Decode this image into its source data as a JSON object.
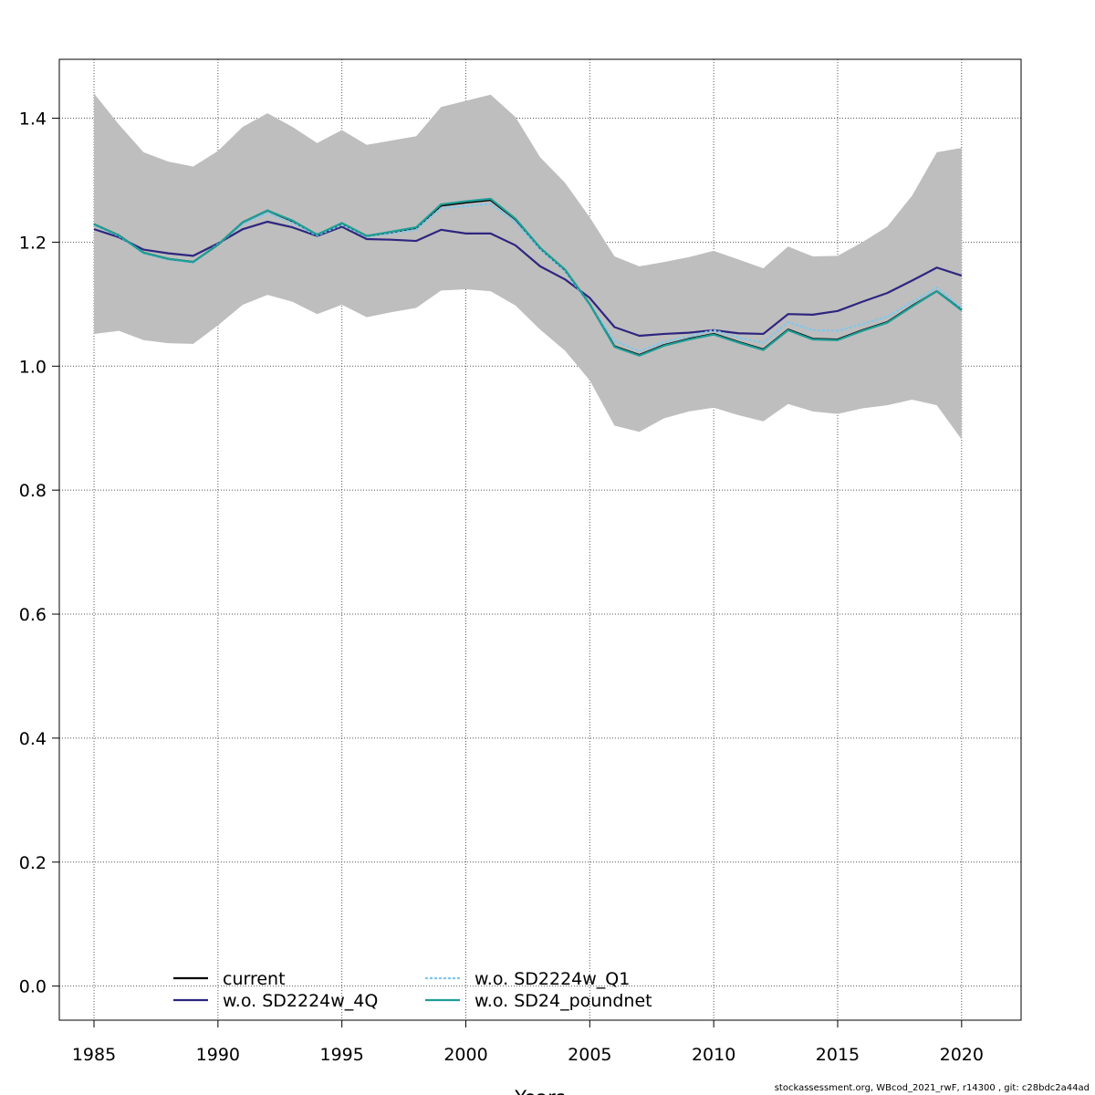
{
  "chart_data": {
    "type": "line",
    "xlabel": "Years",
    "ylabel": "",
    "xlim": [
      1983.6,
      2022.4
    ],
    "ylim": [
      -0.055,
      1.495
    ],
    "xticks": [
      1985,
      1990,
      1995,
      2000,
      2005,
      2010,
      2015,
      2020
    ],
    "yticks": [
      0.0,
      0.2,
      0.4,
      0.6,
      0.8,
      1.0,
      1.2,
      1.4
    ],
    "grid": true,
    "legend_position": "bottom-left",
    "x": [
      1985,
      1986,
      1987,
      1988,
      1989,
      1990,
      1991,
      1992,
      1993,
      1994,
      1995,
      1996,
      1997,
      1998,
      1999,
      2000,
      2001,
      2002,
      2003,
      2004,
      2005,
      2006,
      2007,
      2008,
      2009,
      2010,
      2011,
      2012,
      2013,
      2014,
      2015,
      2016,
      2017,
      2018,
      2019,
      2020
    ],
    "band": {
      "color": "#bebebe",
      "upper": [
        1.44,
        1.39,
        1.345,
        1.33,
        1.322,
        1.347,
        1.386,
        1.408,
        1.386,
        1.36,
        1.381,
        1.357,
        1.364,
        1.371,
        1.418,
        1.428,
        1.438,
        1.402,
        1.337,
        1.296,
        1.24,
        1.177,
        1.161,
        1.168,
        1.176,
        1.186,
        1.172,
        1.158,
        1.193,
        1.177,
        1.178,
        1.2,
        1.225,
        1.275,
        1.345,
        1.352
      ],
      "lower": [
        1.052,
        1.057,
        1.042,
        1.037,
        1.036,
        1.066,
        1.099,
        1.115,
        1.104,
        1.084,
        1.099,
        1.079,
        1.087,
        1.094,
        1.122,
        1.124,
        1.121,
        1.098,
        1.059,
        1.025,
        0.977,
        0.904,
        0.894,
        0.916,
        0.927,
        0.933,
        0.921,
        0.911,
        0.939,
        0.927,
        0.923,
        0.932,
        0.937,
        0.946,
        0.937,
        0.882
      ]
    },
    "series": [
      {
        "name": "current",
        "color": "#000000",
        "dash": "",
        "values": [
          1.229,
          1.211,
          1.183,
          1.173,
          1.168,
          1.196,
          1.232,
          1.251,
          1.234,
          1.212,
          1.23,
          1.21,
          1.216,
          1.223,
          1.259,
          1.264,
          1.268,
          1.237,
          1.19,
          1.155,
          1.1,
          1.032,
          1.018,
          1.034,
          1.044,
          1.052,
          1.039,
          1.027,
          1.059,
          1.044,
          1.043,
          1.058,
          1.071,
          1.097,
          1.121,
          1.091
        ]
      },
      {
        "name": "w.o. SD2224w_4Q",
        "color": "#2e2580",
        "dash": "",
        "values": [
          1.221,
          1.208,
          1.188,
          1.182,
          1.178,
          1.198,
          1.221,
          1.233,
          1.224,
          1.21,
          1.225,
          1.205,
          1.204,
          1.202,
          1.22,
          1.214,
          1.214,
          1.195,
          1.161,
          1.14,
          1.11,
          1.063,
          1.049,
          1.052,
          1.054,
          1.058,
          1.053,
          1.052,
          1.084,
          1.083,
          1.089,
          1.104,
          1.118,
          1.138,
          1.159,
          1.146
        ]
      },
      {
        "name": "w.o. SD2224w_Q1",
        "color": "#7ec8ee",
        "dash": "3,2",
        "values": [
          1.228,
          1.21,
          1.182,
          1.172,
          1.167,
          1.197,
          1.229,
          1.247,
          1.231,
          1.211,
          1.228,
          1.209,
          1.214,
          1.22,
          1.255,
          1.258,
          1.262,
          1.232,
          1.188,
          1.153,
          1.1,
          1.041,
          1.024,
          1.039,
          1.048,
          1.058,
          1.046,
          1.038,
          1.071,
          1.058,
          1.057,
          1.068,
          1.08,
          1.103,
          1.127,
          1.094
        ]
      },
      {
        "name": "w.o. SD24_poundnet",
        "color": "#1f9e96",
        "dash": "",
        "values": [
          1.229,
          1.211,
          1.183,
          1.173,
          1.168,
          1.196,
          1.232,
          1.251,
          1.235,
          1.212,
          1.231,
          1.21,
          1.217,
          1.224,
          1.261,
          1.266,
          1.27,
          1.238,
          1.191,
          1.156,
          1.1,
          1.031,
          1.017,
          1.033,
          1.043,
          1.051,
          1.038,
          1.026,
          1.058,
          1.043,
          1.042,
          1.057,
          1.07,
          1.096,
          1.121,
          1.09
        ]
      }
    ]
  },
  "footer": "stockassessment.org, WBcod_2021_rwF, r14300 , git: c28bdc2a44ad"
}
